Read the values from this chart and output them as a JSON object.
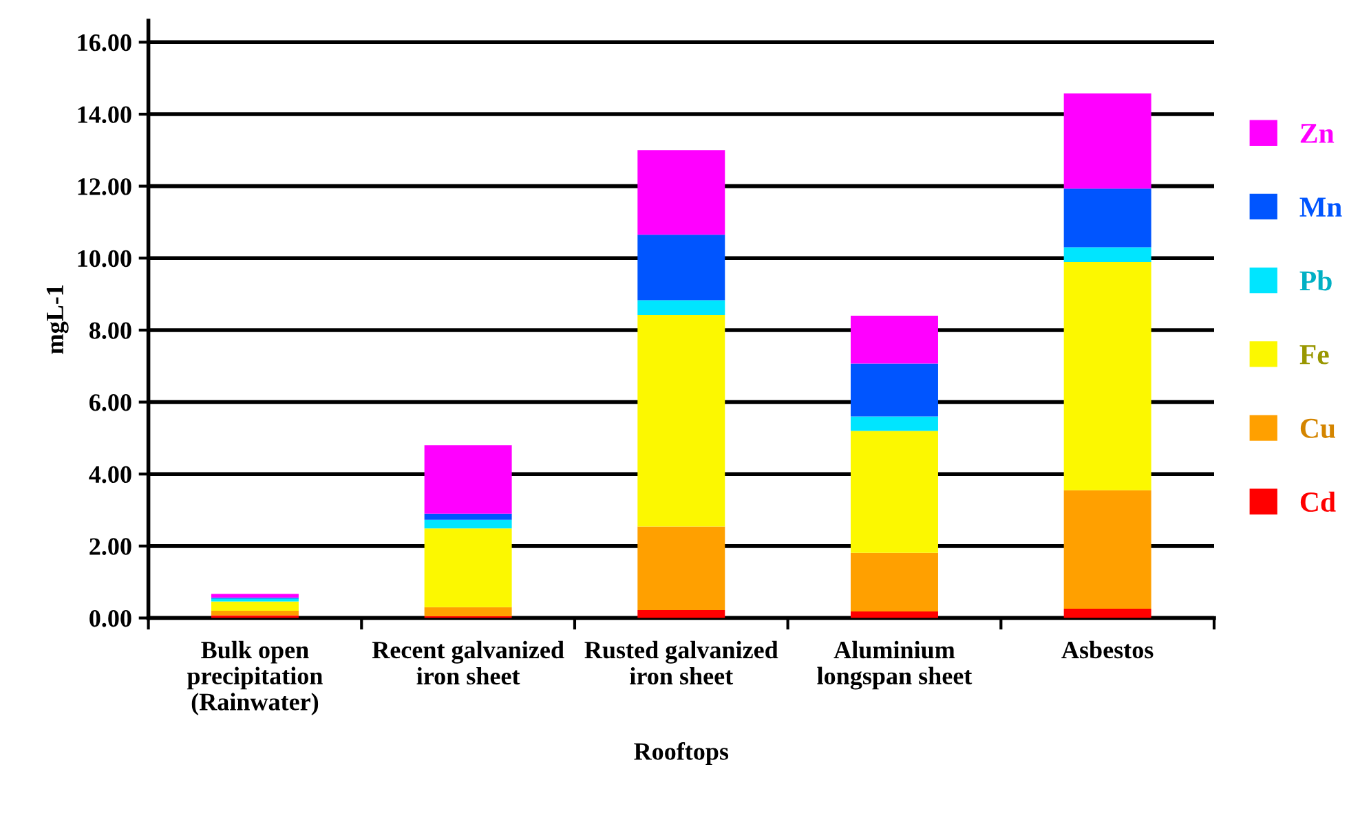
{
  "chart_data": {
    "type": "bar",
    "stacked": true,
    "xlabel": "Rooftops",
    "ylabel": "mgL-1",
    "categories": [
      "Bulk open\nprecipitation\n(Rainwater)",
      "Recent galvanized\niron sheet",
      "Rusted galvanized\niron sheet",
      "Aluminium\nlongspan sheet",
      "Asbestos"
    ],
    "series": [
      {
        "name": "Cd",
        "color": "#ff0000",
        "values": [
          0.07,
          0.05,
          0.22,
          0.18,
          0.26
        ]
      },
      {
        "name": "Cu",
        "color": "#ffa000",
        "values": [
          0.13,
          0.25,
          2.32,
          1.63,
          3.29
        ]
      },
      {
        "name": "Fe",
        "color": "#fcf800",
        "values": [
          0.26,
          2.19,
          5.88,
          3.39,
          6.34
        ]
      },
      {
        "name": "Pb",
        "color": "#00e5ff",
        "values": [
          0.08,
          0.24,
          0.41,
          0.4,
          0.41
        ]
      },
      {
        "name": "Mn",
        "color": "#0055ff",
        "values": [
          0.03,
          0.17,
          1.82,
          1.47,
          1.63
        ]
      },
      {
        "name": "Zn",
        "color": "#ff00ff",
        "values": [
          0.1,
          1.9,
          2.35,
          1.33,
          2.65
        ]
      }
    ],
    "ylim": [
      0,
      16.6
    ],
    "yticks": [
      {
        "value": 0,
        "label": "0.00"
      },
      {
        "value": 2,
        "label": "2.00"
      },
      {
        "value": 4,
        "label": "4.00"
      },
      {
        "value": 6,
        "label": "6.00"
      },
      {
        "value": 8,
        "label": "8.00"
      },
      {
        "value": 10,
        "label": "10.00"
      },
      {
        "value": 12,
        "label": "12.00"
      },
      {
        "value": 14,
        "label": "14.00"
      },
      {
        "value": 16,
        "label": "16.00"
      }
    ],
    "grid": "y",
    "legend": "right"
  }
}
